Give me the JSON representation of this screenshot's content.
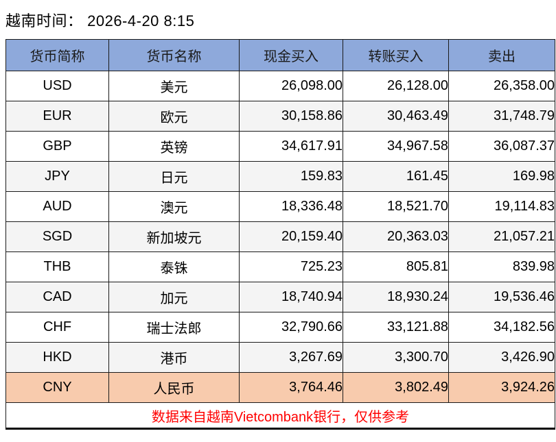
{
  "header": {
    "title": "越南时间： 2026-4-20 8:15"
  },
  "table": {
    "columns": [
      "货币简称",
      "货币名称",
      "现金买入",
      "转账买入",
      "卖出"
    ],
    "rows": [
      {
        "code": "USD",
        "name": "美元",
        "cash_buy": "26,098.00",
        "transfer_buy": "26,128.00",
        "sell": "26,358.00",
        "highlight": false
      },
      {
        "code": "EUR",
        "name": "欧元",
        "cash_buy": "30,158.86",
        "transfer_buy": "30,463.49",
        "sell": "31,748.79",
        "highlight": false
      },
      {
        "code": "GBP",
        "name": "英镑",
        "cash_buy": "34,617.91",
        "transfer_buy": "34,967.58",
        "sell": "36,087.37",
        "highlight": false
      },
      {
        "code": "JPY",
        "name": "日元",
        "cash_buy": "159.83",
        "transfer_buy": "161.45",
        "sell": "169.98",
        "highlight": false
      },
      {
        "code": "AUD",
        "name": "澳元",
        "cash_buy": "18,336.48",
        "transfer_buy": "18,521.70",
        "sell": "19,114.83",
        "highlight": false
      },
      {
        "code": "SGD",
        "name": "新加坡元",
        "cash_buy": "20,159.40",
        "transfer_buy": "20,363.03",
        "sell": "21,057.21",
        "highlight": false
      },
      {
        "code": "THB",
        "name": "泰铢",
        "cash_buy": "725.23",
        "transfer_buy": "805.81",
        "sell": "839.98",
        "highlight": false
      },
      {
        "code": "CAD",
        "name": "加元",
        "cash_buy": "18,740.94",
        "transfer_buy": "18,930.24",
        "sell": "19,536.46",
        "highlight": false
      },
      {
        "code": "CHF",
        "name": "瑞士法郎",
        "cash_buy": "32,790.66",
        "transfer_buy": "33,121.88",
        "sell": "34,182.56",
        "highlight": false
      },
      {
        "code": "HKD",
        "name": "港币",
        "cash_buy": "3,267.69",
        "transfer_buy": "3,300.70",
        "sell": "3,426.90",
        "highlight": false
      },
      {
        "code": "CNY",
        "name": "人民币",
        "cash_buy": "3,764.46",
        "transfer_buy": "3,802.49",
        "sell": "3,924.26",
        "highlight": true
      }
    ]
  },
  "footer": {
    "note": "数据来自越南Vietcombank银行，仅供参考"
  },
  "colors": {
    "header_bg": "#8EA9DB",
    "alt_row_bg": "#F4F4F4",
    "highlight_row_bg": "#F8CBAD",
    "note_color": "#FF0000"
  },
  "chart_data": {
    "type": "table",
    "title": "越南时间： 2026-4-20 8:15",
    "columns": [
      "货币简称",
      "货币名称",
      "现金买入",
      "转账买入",
      "卖出"
    ],
    "rows": [
      [
        "USD",
        "美元",
        26098.0,
        26128.0,
        26358.0
      ],
      [
        "EUR",
        "欧元",
        30158.86,
        30463.49,
        31748.79
      ],
      [
        "GBP",
        "英镑",
        34617.91,
        34967.58,
        36087.37
      ],
      [
        "JPY",
        "日元",
        159.83,
        161.45,
        169.98
      ],
      [
        "AUD",
        "澳元",
        18336.48,
        18521.7,
        19114.83
      ],
      [
        "SGD",
        "新加坡元",
        20159.4,
        20363.03,
        21057.21
      ],
      [
        "THB",
        "泰铢",
        725.23,
        805.81,
        839.98
      ],
      [
        "CAD",
        "加元",
        18740.94,
        18930.24,
        19536.46
      ],
      [
        "CHF",
        "瑞士法郎",
        32790.66,
        33121.88,
        34182.56
      ],
      [
        "HKD",
        "港币",
        3267.69,
        3300.7,
        3426.9
      ],
      [
        "CNY",
        "人民币",
        3764.46,
        3802.49,
        3924.26
      ]
    ],
    "annotations": [
      "数据来自越南Vietcombank银行，仅供参考"
    ]
  }
}
